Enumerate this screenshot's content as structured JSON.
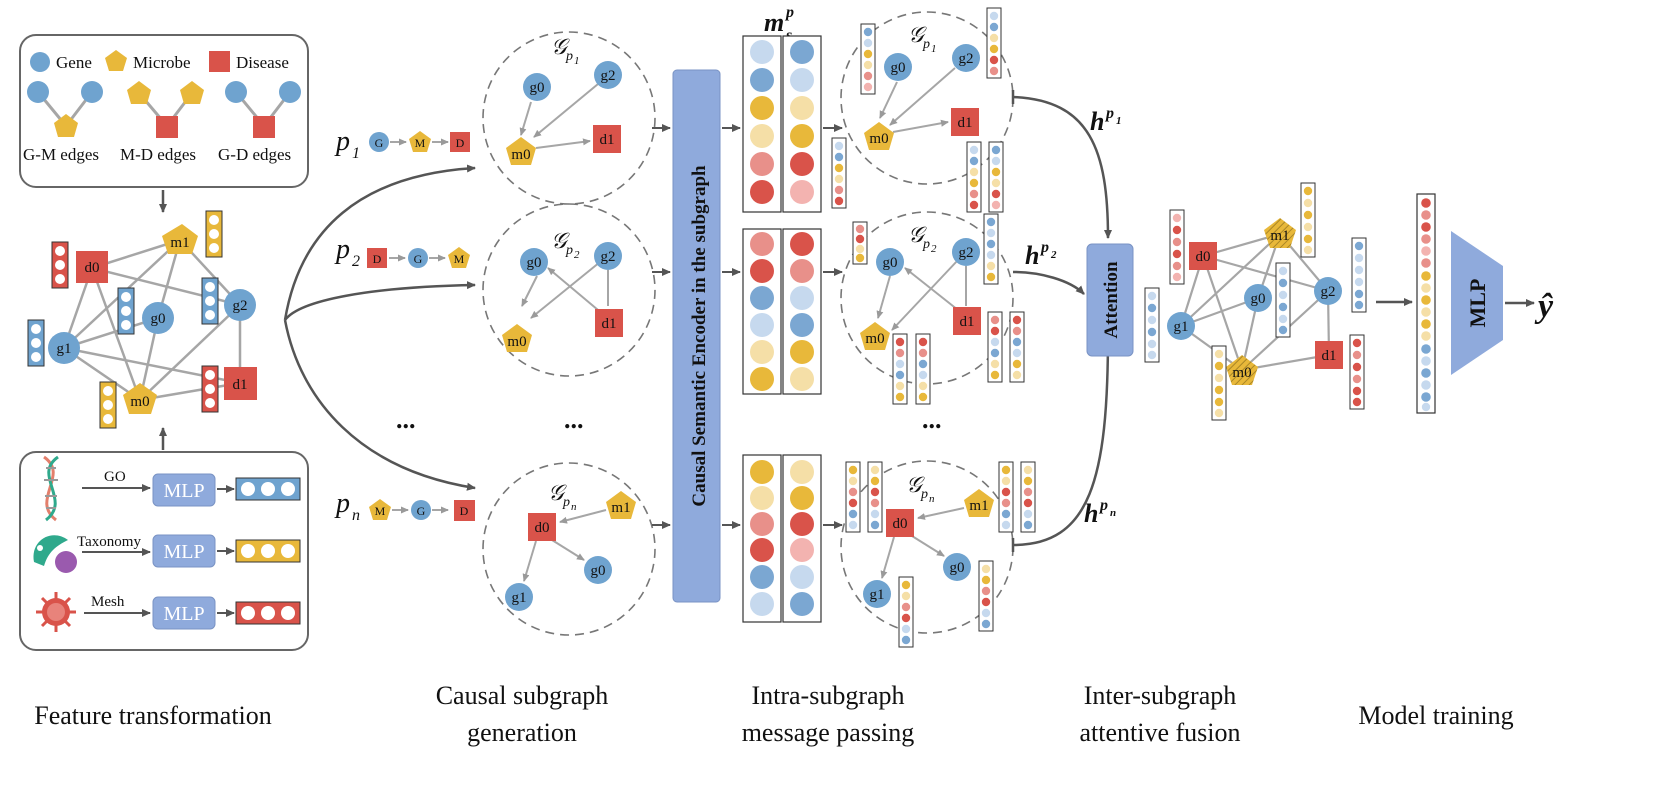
{
  "legend": {
    "gene": "Gene",
    "microbe": "Microbe",
    "disease": "Disease",
    "gm_edges": "G-M edges",
    "md_edges": "M-D edges",
    "gd_edges": "G-D edges"
  },
  "nodes": {
    "g0": "g0",
    "g1": "g1",
    "g2": "g2",
    "m0": "m0",
    "m1": "m1",
    "d0": "d0",
    "d1": "d1"
  },
  "features": {
    "go": "GO",
    "taxonomy": "Taxonomy",
    "mesh": "Mesh",
    "mlp": "MLP"
  },
  "paths": {
    "p_symbol": "p",
    "p1_sub": "1",
    "p2_sub": "2",
    "pn_sub": "n",
    "G": "G",
    "M": "M",
    "D": "D"
  },
  "subgraphs": {
    "g_symbol": "𝒢",
    "p_sub": "p",
    "sub1": "1",
    "sub2": "2",
    "subn": "n"
  },
  "encoder": {
    "label": "Causal Semantic Encoder in the subgraph"
  },
  "message": {
    "m_symbol": "m",
    "sub": "s",
    "sup": "p"
  },
  "fusion": {
    "attention_label": "Attention",
    "h_symbol": "h",
    "h_sup": "p",
    "h_sub1": "1",
    "h_sub2": "2",
    "h_subn": "n"
  },
  "mlp_final": "MLP",
  "output": "ŷ",
  "ellipsis": "...",
  "stages": {
    "feature": "Feature transformation",
    "causal1": "Causal subgraph",
    "causal2": "generation",
    "intra1": "Intra-subgraph",
    "intra2": "message passing",
    "inter1": "Inter-subgraph",
    "inter2": "attentive fusion",
    "training": "Model training"
  },
  "colors": {
    "gene": "#6FA3CF",
    "microbe": "#E8B83A",
    "disease": "#D9534A",
    "mlp": "#8FAADC",
    "arrow": "#555555",
    "gray_edge": "#A6A6A6"
  }
}
